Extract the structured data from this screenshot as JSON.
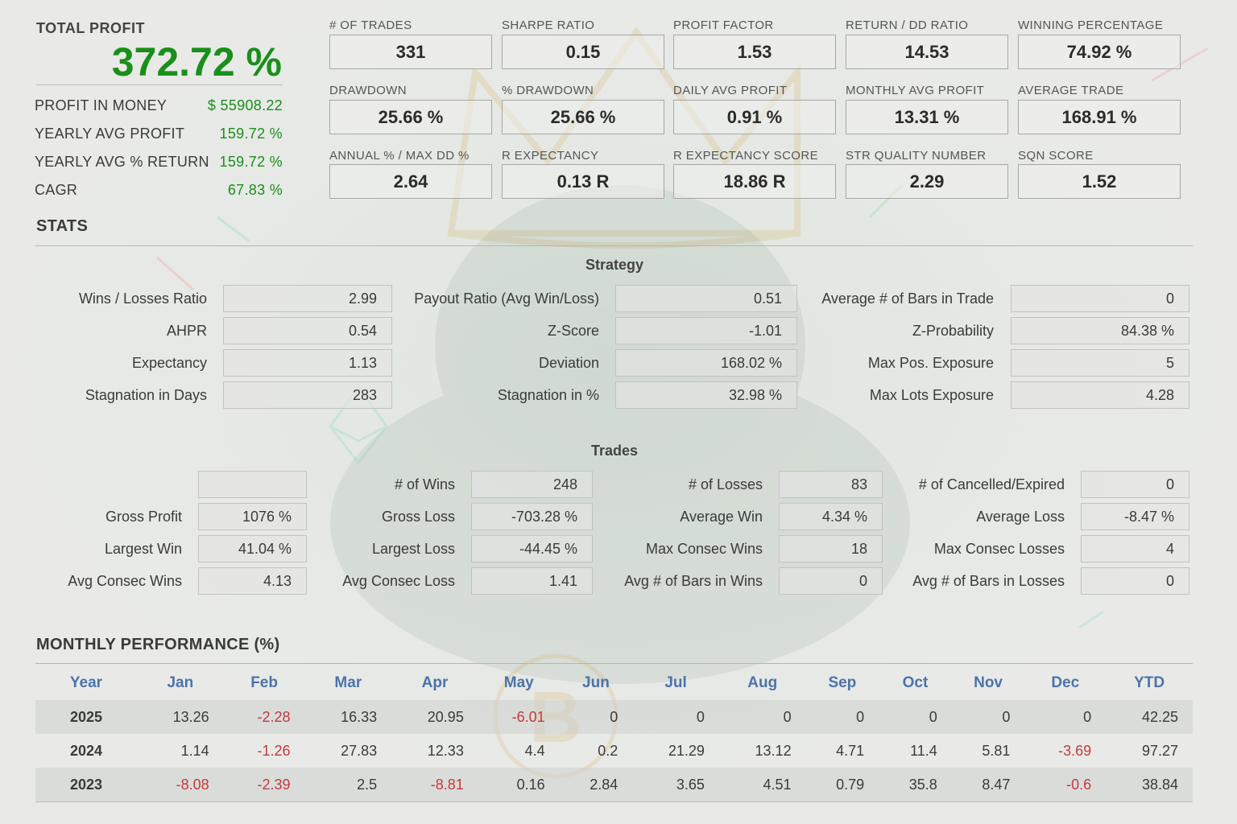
{
  "summary": {
    "total_profit_label": "TOTAL PROFIT",
    "total_profit_value": "372.72 %",
    "rows": [
      {
        "label": "PROFIT IN MONEY",
        "value": "$ 55908.22"
      },
      {
        "label": "YEARLY AVG PROFIT",
        "value": "159.72 %"
      },
      {
        "label": "YEARLY AVG % RETURN",
        "value": "159.72 %"
      },
      {
        "label": "CAGR",
        "value": "67.83 %"
      }
    ]
  },
  "metrics": [
    {
      "label": "# OF TRADES",
      "value": "331"
    },
    {
      "label": "SHARPE RATIO",
      "value": "0.15"
    },
    {
      "label": "PROFIT FACTOR",
      "value": "1.53"
    },
    {
      "label": "RETURN / DD RATIO",
      "value": "14.53"
    },
    {
      "label": "WINNING PERCENTAGE",
      "value": "74.92 %"
    },
    {
      "label": "DRAWDOWN",
      "value": "25.66 %"
    },
    {
      "label": "% DRAWDOWN",
      "value": "25.66 %"
    },
    {
      "label": "DAILY AVG PROFIT",
      "value": "0.91 %"
    },
    {
      "label": "MONTHLY AVG PROFIT",
      "value": "13.31 %"
    },
    {
      "label": "AVERAGE TRADE",
      "value": "168.91 %"
    },
    {
      "label": "ANNUAL % / MAX DD %",
      "value": "2.64"
    },
    {
      "label": "R EXPECTANCY",
      "value": "0.13 R"
    },
    {
      "label": "R EXPECTANCY SCORE",
      "value": "18.86 R"
    },
    {
      "label": "STR QUALITY NUMBER",
      "value": "2.29"
    },
    {
      "label": "SQN SCORE",
      "value": "1.52"
    }
  ],
  "stats": {
    "title": "STATS",
    "strategy_heading": "Strategy",
    "strategy": [
      [
        {
          "label": "Wins / Losses Ratio",
          "value": "2.99"
        },
        {
          "label": "Payout Ratio (Avg Win/Loss)",
          "value": "0.51"
        },
        {
          "label": "Average # of Bars in Trade",
          "value": "0"
        }
      ],
      [
        {
          "label": "AHPR",
          "value": "0.54"
        },
        {
          "label": "Z-Score",
          "value": "-1.01"
        },
        {
          "label": "Z-Probability",
          "value": "84.38 %"
        }
      ],
      [
        {
          "label": "Expectancy",
          "value": "1.13"
        },
        {
          "label": "Deviation",
          "value": "168.02 %"
        },
        {
          "label": "Max Pos. Exposure",
          "value": "5"
        }
      ],
      [
        {
          "label": "Stagnation in Days",
          "value": "283"
        },
        {
          "label": "Stagnation in %",
          "value": "32.98 %"
        },
        {
          "label": "Max Lots Exposure",
          "value": "4.28"
        }
      ]
    ],
    "trades_heading": "Trades",
    "trades": [
      [
        {
          "label": "",
          "value": ""
        },
        {
          "label": "# of Wins",
          "value": "248"
        },
        {
          "label": "# of Losses",
          "value": "83"
        },
        {
          "label": "# of Cancelled/Expired",
          "value": "0"
        }
      ],
      [
        {
          "label": "Gross Profit",
          "value": "1076 %"
        },
        {
          "label": "Gross Loss",
          "value": "-703.28 %"
        },
        {
          "label": "Average Win",
          "value": "4.34 %"
        },
        {
          "label": "Average Loss",
          "value": "-8.47 %"
        }
      ],
      [
        {
          "label": "Largest Win",
          "value": "41.04 %"
        },
        {
          "label": "Largest Loss",
          "value": "-44.45 %"
        },
        {
          "label": "Max Consec Wins",
          "value": "18"
        },
        {
          "label": "Max Consec Losses",
          "value": "4"
        }
      ],
      [
        {
          "label": "Avg Consec Wins",
          "value": "4.13"
        },
        {
          "label": "Avg Consec Loss",
          "value": "1.41"
        },
        {
          "label": "Avg # of Bars in Wins",
          "value": "0"
        },
        {
          "label": "Avg # of Bars in Losses",
          "value": "0"
        }
      ]
    ]
  },
  "monthly": {
    "title": "MONTHLY PERFORMANCE (%)",
    "headers": [
      "Year",
      "Jan",
      "Feb",
      "Mar",
      "Apr",
      "May",
      "Jun",
      "Jul",
      "Aug",
      "Sep",
      "Oct",
      "Nov",
      "Dec",
      "YTD"
    ],
    "rows": [
      [
        "2025",
        "13.26",
        "-2.28",
        "16.33",
        "20.95",
        "-6.01",
        "0",
        "0",
        "0",
        "0",
        "0",
        "0",
        "0",
        "42.25"
      ],
      [
        "2024",
        "1.14",
        "-1.26",
        "27.83",
        "12.33",
        "4.4",
        "0.2",
        "21.29",
        "13.12",
        "4.71",
        "11.4",
        "5.81",
        "-3.69",
        "97.27"
      ],
      [
        "2023",
        "-8.08",
        "-2.39",
        "2.5",
        "-8.81",
        "0.16",
        "2.84",
        "3.65",
        "4.51",
        "0.79",
        "35.8",
        "8.47",
        "-0.6",
        "38.84"
      ]
    ]
  },
  "colors": {
    "positive": "#1a8f1a",
    "negative": "#c23a3a",
    "month_header": "#4c73a8"
  }
}
